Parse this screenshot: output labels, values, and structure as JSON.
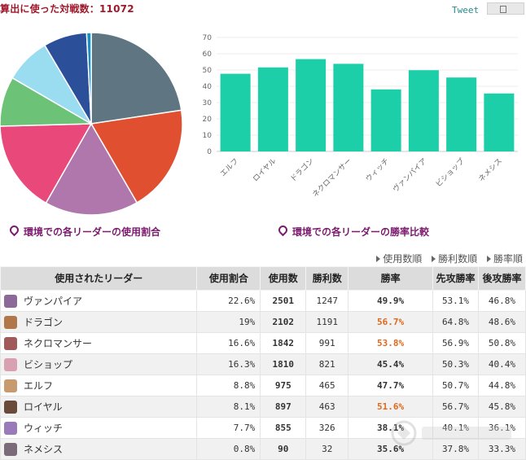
{
  "header": {
    "title": "算出に使った対戦数：11072",
    "tweet_label": "Tweet"
  },
  "pie_caption": "環境での各リーダーの使用割合",
  "bar_caption": "環境での各リーダーの勝率比較",
  "sort_links": [
    "使用数順",
    "勝利数順",
    "勝率順"
  ],
  "colors": {
    "title": "#a0182b",
    "bar": "#1dcfa9",
    "caption": "#7b1b6e",
    "highlight": "#e0681c"
  },
  "chart_data": [
    {
      "type": "pie",
      "title": "環境での各リーダーの使用割合",
      "labels": [
        "ヴァンパイア",
        "ドラゴン",
        "ネクロマンサー",
        "ビショップ",
        "エルフ",
        "ロイヤル",
        "ウィッチ",
        "ネメシス"
      ],
      "values": [
        22.6,
        19,
        16.6,
        16.3,
        8.8,
        8.1,
        7.7,
        0.8
      ],
      "colors": [
        "#607582",
        "#e04f30",
        "#b077ad",
        "#e8487a",
        "#6cc277",
        "#9adcf0",
        "#2c4f9a",
        "#1a8fc6"
      ]
    },
    {
      "type": "bar",
      "title": "環境での各リーダーの勝率比較",
      "categories": [
        "エルフ",
        "ロイヤル",
        "ドラゴン",
        "ネクロマンサー",
        "ウィッチ",
        "ヴァンパイア",
        "ビショップ",
        "ネメシス"
      ],
      "values": [
        47.7,
        51.6,
        56.7,
        53.8,
        38.1,
        49.9,
        45.4,
        35.6
      ],
      "ylim": [
        0,
        70
      ],
      "yticks": [
        0,
        10,
        20,
        30,
        40,
        50,
        60,
        70
      ],
      "grid": true
    }
  ],
  "table": {
    "headers": [
      "使用されたリーダー",
      "使用割合",
      "使用数",
      "勝利数",
      "勝率",
      "先攻勝率",
      "後攻勝率"
    ],
    "rows": [
      {
        "leader": "ヴァンパイア",
        "share": "22.6%",
        "uses": "2501",
        "wins": "1247",
        "winrate": "49.9%",
        "first": "53.1%",
        "second": "46.8%",
        "hi": false,
        "avatar": "#8b6a9a"
      },
      {
        "leader": "ドラゴン",
        "share": "19%",
        "uses": "2102",
        "wins": "1191",
        "winrate": "56.7%",
        "first": "64.8%",
        "second": "48.6%",
        "hi": true,
        "avatar": "#b0784a"
      },
      {
        "leader": "ネクロマンサー",
        "share": "16.6%",
        "uses": "1842",
        "wins": "991",
        "winrate": "53.8%",
        "first": "56.9%",
        "second": "50.8%",
        "hi": true,
        "avatar": "#a05a5a"
      },
      {
        "leader": "ビショップ",
        "share": "16.3%",
        "uses": "1810",
        "wins": "821",
        "winrate": "45.4%",
        "first": "50.3%",
        "second": "40.4%",
        "hi": false,
        "avatar": "#d8a0b0"
      },
      {
        "leader": "エルフ",
        "share": "8.8%",
        "uses": "975",
        "wins": "465",
        "winrate": "47.7%",
        "first": "50.7%",
        "second": "44.8%",
        "hi": false,
        "avatar": "#c89a70"
      },
      {
        "leader": "ロイヤル",
        "share": "8.1%",
        "uses": "897",
        "wins": "463",
        "winrate": "51.6%",
        "first": "56.7%",
        "second": "45.8%",
        "hi": true,
        "avatar": "#6a4a3a"
      },
      {
        "leader": "ウィッチ",
        "share": "7.7%",
        "uses": "855",
        "wins": "326",
        "winrate": "38.1%",
        "first": "40.1%",
        "second": "36.1%",
        "hi": false,
        "avatar": "#9a7ab8"
      },
      {
        "leader": "ネメシス",
        "share": "0.8%",
        "uses": "90",
        "wins": "32",
        "winrate": "35.6%",
        "first": "37.8%",
        "second": "33.3%",
        "hi": false,
        "avatar": "#7a6a7a"
      }
    ]
  }
}
